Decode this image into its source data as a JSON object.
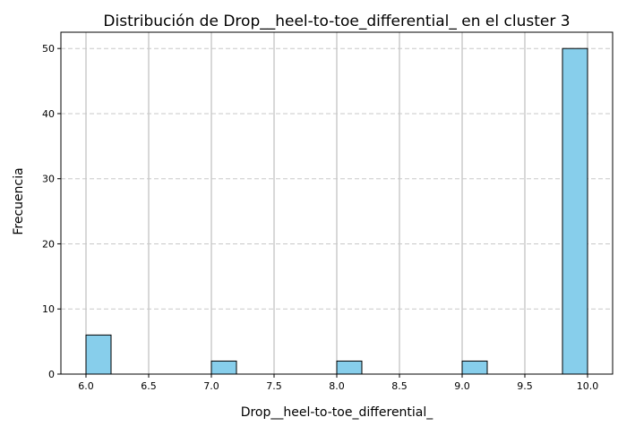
{
  "chart_data": {
    "type": "bar",
    "title": "Distribución de Drop__heel-to-toe_differential_ en el cluster 3",
    "xlabel": "Drop__heel-to-toe_differential_",
    "ylabel": "Frecuencia",
    "xlim": [
      5.8,
      10.2
    ],
    "ylim": [
      0,
      52.5
    ],
    "xticks": [
      "6.0",
      "6.5",
      "7.0",
      "7.5",
      "8.0",
      "8.5",
      "9.0",
      "9.5",
      "10.0"
    ],
    "yticks": [
      "0",
      "10",
      "20",
      "30",
      "40",
      "50"
    ],
    "bins": [
      {
        "start": 6.0,
        "end": 6.2,
        "count": 6
      },
      {
        "start": 7.0,
        "end": 7.2,
        "count": 2
      },
      {
        "start": 8.0,
        "end": 8.2,
        "count": 2
      },
      {
        "start": 9.0,
        "end": 9.2,
        "count": 2
      },
      {
        "start": 9.8,
        "end": 10.0,
        "count": 50
      }
    ],
    "grid": {
      "x": "solid",
      "y": "dashed"
    },
    "colors": {
      "bar_fill": "#87ceeb",
      "bar_edge": "#000000",
      "x_grid": "#b0b0b0",
      "y_grid": "#c8c8c8"
    }
  }
}
